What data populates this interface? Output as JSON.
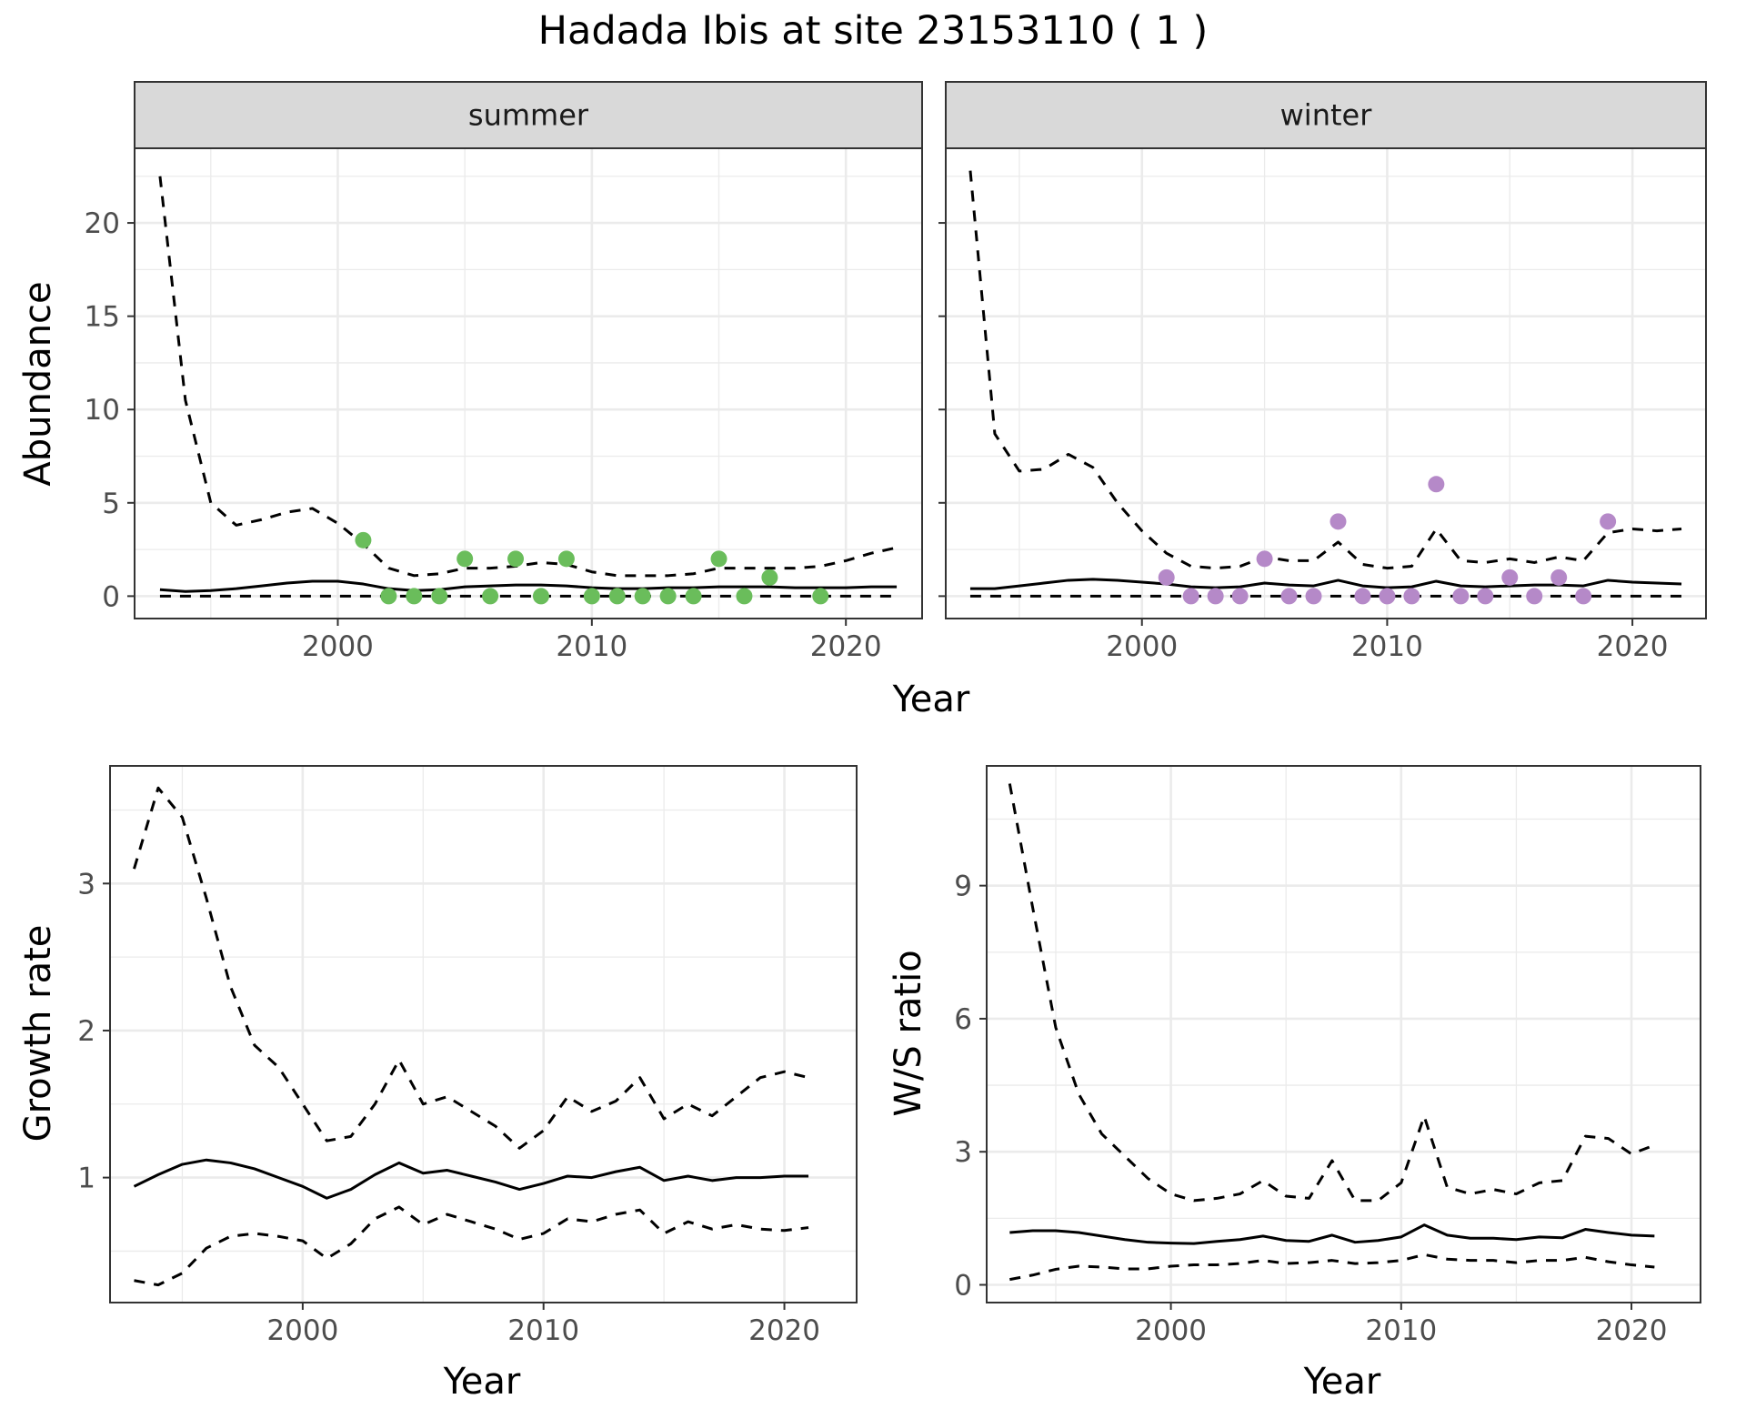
{
  "figure": {
    "title": "Hadada Ibis at site 23153110 ( 1 )"
  },
  "chart_data": [
    {
      "type": "line",
      "panel": "summer",
      "facet_label": "summer",
      "xlabel": "Year",
      "ylabel": "Abundance",
      "xlim": [
        1992,
        2023
      ],
      "ylim": [
        -1.2,
        24
      ],
      "xticks": [
        2000,
        2010,
        2020
      ],
      "yticks": [
        0,
        5,
        10,
        15,
        20
      ],
      "grid": true,
      "point_color": "#6abd5b",
      "series": [
        {
          "role": "estimate",
          "style": "solid",
          "x": [
            1993,
            1994,
            1995,
            1996,
            1997,
            1998,
            1999,
            2000,
            2001,
            2002,
            2003,
            2004,
            2005,
            2006,
            2007,
            2008,
            2009,
            2010,
            2011,
            2012,
            2013,
            2014,
            2015,
            2016,
            2017,
            2018,
            2019,
            2020,
            2021,
            2022
          ],
          "y": [
            0.35,
            0.25,
            0.3,
            0.4,
            0.55,
            0.7,
            0.8,
            0.8,
            0.65,
            0.4,
            0.3,
            0.35,
            0.5,
            0.55,
            0.6,
            0.6,
            0.55,
            0.45,
            0.4,
            0.4,
            0.45,
            0.45,
            0.5,
            0.5,
            0.5,
            0.45,
            0.45,
            0.45,
            0.5,
            0.5
          ]
        },
        {
          "role": "upper",
          "style": "dashed",
          "x": [
            1993,
            1994,
            1995,
            1996,
            1997,
            1998,
            1999,
            2000,
            2001,
            2002,
            2003,
            2004,
            2005,
            2006,
            2007,
            2008,
            2009,
            2010,
            2011,
            2012,
            2013,
            2014,
            2015,
            2016,
            2017,
            2018,
            2019,
            2020,
            2021,
            2022
          ],
          "y": [
            22.5,
            10.5,
            5.0,
            3.8,
            4.1,
            4.5,
            4.7,
            3.9,
            2.8,
            1.5,
            1.1,
            1.2,
            1.5,
            1.5,
            1.6,
            1.8,
            1.7,
            1.3,
            1.1,
            1.1,
            1.1,
            1.2,
            1.5,
            1.5,
            1.5,
            1.5,
            1.6,
            1.9,
            2.3,
            2.6
          ]
        },
        {
          "role": "lower",
          "style": "dashed",
          "x": [
            1993,
            2022
          ],
          "y": [
            0,
            0
          ]
        },
        {
          "role": "observed",
          "style": "points",
          "x": [
            2001,
            2002,
            2003,
            2004,
            2005,
            2006,
            2007,
            2008,
            2009,
            2010,
            2011,
            2012,
            2013,
            2014,
            2015,
            2016,
            2017,
            2019
          ],
          "y": [
            3,
            0,
            0,
            0,
            2,
            0,
            2,
            0,
            2,
            0,
            0,
            0,
            0,
            0,
            2,
            0,
            1,
            0
          ]
        }
      ]
    },
    {
      "type": "line",
      "panel": "winter",
      "facet_label": "winter",
      "xlabel": "Year",
      "ylabel": "Abundance",
      "xlim": [
        1992,
        2023
      ],
      "ylim": [
        -1.2,
        24
      ],
      "xticks": [
        2000,
        2010,
        2020
      ],
      "yticks": [
        0,
        5,
        10,
        15,
        20
      ],
      "grid": true,
      "point_color": "#b589c8",
      "series": [
        {
          "role": "estimate",
          "style": "solid",
          "x": [
            1993,
            1994,
            1995,
            1996,
            1997,
            1998,
            1999,
            2000,
            2001,
            2002,
            2003,
            2004,
            2005,
            2006,
            2007,
            2008,
            2009,
            2010,
            2011,
            2012,
            2013,
            2014,
            2015,
            2016,
            2017,
            2018,
            2019,
            2020,
            2021,
            2022
          ],
          "y": [
            0.4,
            0.4,
            0.55,
            0.7,
            0.85,
            0.9,
            0.85,
            0.75,
            0.65,
            0.5,
            0.45,
            0.5,
            0.7,
            0.6,
            0.55,
            0.85,
            0.55,
            0.45,
            0.5,
            0.8,
            0.55,
            0.5,
            0.55,
            0.6,
            0.6,
            0.55,
            0.85,
            0.75,
            0.7,
            0.65
          ]
        },
        {
          "role": "upper",
          "style": "dashed",
          "x": [
            1993,
            1994,
            1995,
            1996,
            1997,
            1998,
            1999,
            2000,
            2001,
            2002,
            2003,
            2004,
            2005,
            2006,
            2007,
            2008,
            2009,
            2010,
            2011,
            2012,
            2013,
            2014,
            2015,
            2016,
            2017,
            2018,
            2019,
            2020,
            2021,
            2022
          ],
          "y": [
            22.8,
            8.7,
            6.7,
            6.8,
            7.6,
            6.9,
            5.0,
            3.5,
            2.3,
            1.6,
            1.5,
            1.6,
            2.1,
            1.9,
            1.9,
            2.9,
            1.7,
            1.5,
            1.6,
            3.6,
            1.9,
            1.8,
            2.0,
            1.8,
            2.1,
            1.9,
            3.4,
            3.6,
            3.5,
            3.6
          ]
        },
        {
          "role": "lower",
          "style": "dashed",
          "x": [
            1993,
            2022
          ],
          "y": [
            0,
            0
          ]
        },
        {
          "role": "observed",
          "style": "points",
          "x": [
            2001,
            2002,
            2003,
            2004,
            2005,
            2006,
            2007,
            2008,
            2009,
            2010,
            2011,
            2012,
            2013,
            2014,
            2015,
            2016,
            2017,
            2018,
            2019
          ],
          "y": [
            1,
            0,
            0,
            0,
            2,
            0,
            0,
            4,
            0,
            0,
            0,
            6,
            0,
            0,
            1,
            0,
            1,
            0,
            4
          ]
        }
      ]
    },
    {
      "type": "line",
      "panel": "growth",
      "xlabel": "Year",
      "ylabel": "Growth rate",
      "xlim": [
        1992,
        2023
      ],
      "ylim": [
        0.15,
        3.8
      ],
      "xticks": [
        2000,
        2010,
        2020
      ],
      "yticks": [
        1,
        2,
        3
      ],
      "grid": true,
      "series": [
        {
          "role": "estimate",
          "style": "solid",
          "x": [
            1993,
            1994,
            1995,
            1996,
            1997,
            1998,
            1999,
            2000,
            2001,
            2002,
            2003,
            2004,
            2005,
            2006,
            2007,
            2008,
            2009,
            2010,
            2011,
            2012,
            2013,
            2014,
            2015,
            2016,
            2017,
            2018,
            2019,
            2020,
            2021
          ],
          "y": [
            0.94,
            1.02,
            1.09,
            1.12,
            1.1,
            1.06,
            1.0,
            0.94,
            0.86,
            0.92,
            1.02,
            1.1,
            1.03,
            1.05,
            1.01,
            0.97,
            0.92,
            0.96,
            1.01,
            1.0,
            1.04,
            1.07,
            0.98,
            1.01,
            0.98,
            1.0,
            1.0,
            1.01,
            1.01
          ]
        },
        {
          "role": "upper",
          "style": "dashed",
          "x": [
            1993,
            1994,
            1995,
            1996,
            1997,
            1998,
            1999,
            2000,
            2001,
            2002,
            2003,
            2004,
            2005,
            2006,
            2007,
            2008,
            2009,
            2010,
            2011,
            2012,
            2013,
            2014,
            2015,
            2016,
            2017,
            2018,
            2019,
            2020,
            2021
          ],
          "y": [
            3.1,
            3.65,
            3.45,
            2.9,
            2.3,
            1.9,
            1.75,
            1.5,
            1.25,
            1.28,
            1.5,
            1.8,
            1.5,
            1.55,
            1.45,
            1.35,
            1.2,
            1.32,
            1.55,
            1.45,
            1.52,
            1.68,
            1.4,
            1.5,
            1.42,
            1.55,
            1.68,
            1.72,
            1.68
          ]
        },
        {
          "role": "lower",
          "style": "dashed",
          "x": [
            1993,
            1994,
            1995,
            1996,
            1997,
            1998,
            1999,
            2000,
            2001,
            2002,
            2003,
            2004,
            2005,
            2006,
            2007,
            2008,
            2009,
            2010,
            2011,
            2012,
            2013,
            2014,
            2015,
            2016,
            2017,
            2018,
            2019,
            2020,
            2021
          ],
          "y": [
            0.3,
            0.27,
            0.35,
            0.52,
            0.6,
            0.62,
            0.6,
            0.57,
            0.45,
            0.55,
            0.72,
            0.8,
            0.68,
            0.75,
            0.7,
            0.65,
            0.58,
            0.62,
            0.72,
            0.7,
            0.75,
            0.78,
            0.62,
            0.7,
            0.65,
            0.68,
            0.65,
            0.64,
            0.66
          ]
        }
      ]
    },
    {
      "type": "line",
      "panel": "ratio",
      "xlabel": "Year",
      "ylabel": "W/S ratio",
      "xlim": [
        1992,
        2023
      ],
      "ylim": [
        -0.4,
        11.7
      ],
      "xticks": [
        2000,
        2010,
        2020
      ],
      "yticks": [
        0,
        3,
        6,
        9
      ],
      "grid": true,
      "series": [
        {
          "role": "estimate",
          "style": "solid",
          "x": [
            1993,
            1994,
            1995,
            1996,
            1997,
            1998,
            1999,
            2000,
            2001,
            2002,
            2003,
            2004,
            2005,
            2006,
            2007,
            2008,
            2009,
            2010,
            2011,
            2012,
            2013,
            2014,
            2015,
            2016,
            2017,
            2018,
            2019,
            2020,
            2021
          ],
          "y": [
            1.18,
            1.22,
            1.22,
            1.18,
            1.1,
            1.02,
            0.96,
            0.94,
            0.93,
            0.98,
            1.02,
            1.1,
            1.0,
            0.98,
            1.12,
            0.96,
            1.0,
            1.08,
            1.35,
            1.12,
            1.05,
            1.05,
            1.02,
            1.08,
            1.06,
            1.25,
            1.18,
            1.12,
            1.1
          ]
        },
        {
          "role": "upper",
          "style": "dashed",
          "x": [
            1993,
            1994,
            1995,
            1996,
            1997,
            1998,
            1999,
            2000,
            2001,
            2002,
            2003,
            2004,
            2005,
            2006,
            2007,
            2008,
            2009,
            2010,
            2011,
            2012,
            2013,
            2014,
            2015,
            2016,
            2017,
            2018,
            2019,
            2020,
            2021
          ],
          "y": [
            11.3,
            8.5,
            5.8,
            4.3,
            3.4,
            2.9,
            2.4,
            2.05,
            1.9,
            1.95,
            2.05,
            2.35,
            2.0,
            1.95,
            2.8,
            1.9,
            1.9,
            2.3,
            3.8,
            2.2,
            2.05,
            2.15,
            2.05,
            2.3,
            2.35,
            3.35,
            3.3,
            2.95,
            3.15
          ]
        },
        {
          "role": "lower",
          "style": "dashed",
          "x": [
            1993,
            1994,
            1995,
            1996,
            1997,
            1998,
            1999,
            2000,
            2001,
            2002,
            2003,
            2004,
            2005,
            2006,
            2007,
            2008,
            2009,
            2010,
            2011,
            2012,
            2013,
            2014,
            2015,
            2016,
            2017,
            2018,
            2019,
            2020,
            2021
          ],
          "y": [
            0.12,
            0.22,
            0.35,
            0.42,
            0.4,
            0.36,
            0.36,
            0.42,
            0.45,
            0.45,
            0.48,
            0.55,
            0.48,
            0.5,
            0.55,
            0.48,
            0.5,
            0.55,
            0.68,
            0.58,
            0.55,
            0.55,
            0.5,
            0.55,
            0.55,
            0.62,
            0.52,
            0.45,
            0.4
          ]
        }
      ]
    }
  ]
}
